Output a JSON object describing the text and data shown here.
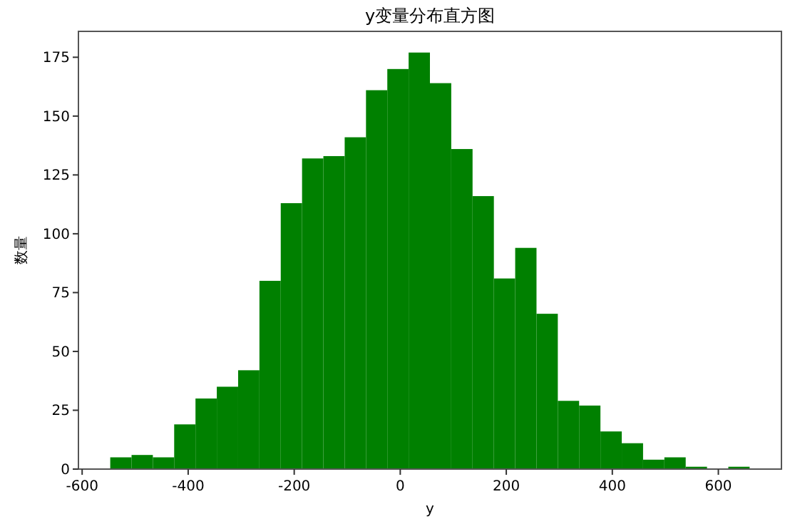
{
  "chart_data": {
    "type": "histogram",
    "title": "y变量分布直方图",
    "xlabel": "y",
    "ylabel": "数量",
    "bins": [
      -547,
      -506.8,
      -466.6,
      -426.4,
      -386.2,
      -346,
      -305.8,
      -265.6,
      -225.4,
      -185.2,
      -145,
      -104.8,
      -64.6,
      -24.4,
      15.8,
      56,
      96.2,
      136.4,
      176.6,
      216.8,
      257,
      297.2,
      337.4,
      377.6,
      417.8,
      458,
      498.2,
      538.4,
      578.6,
      618.8,
      659
    ],
    "values": [
      5,
      6,
      5,
      19,
      30,
      35,
      42,
      80,
      113,
      132,
      133,
      141,
      161,
      170,
      177,
      164,
      136,
      116,
      81,
      94,
      66,
      29,
      27,
      16,
      11,
      4,
      5,
      1,
      0,
      1
    ],
    "color": "#008000",
    "xlim": [
      -607,
      719
    ],
    "ylim": [
      0,
      186
    ],
    "xticks": [
      -600,
      -400,
      -200,
      0,
      200,
      400,
      600
    ],
    "yticks": [
      0,
      25,
      50,
      75,
      100,
      125,
      150,
      175
    ],
    "grid": false
  }
}
